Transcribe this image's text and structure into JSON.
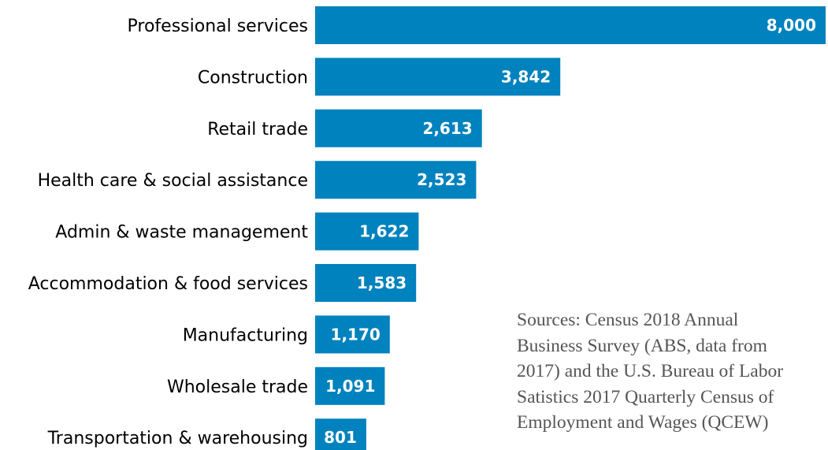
{
  "chart_data": {
    "type": "bar",
    "orientation": "horizontal",
    "categories": [
      "Professional services",
      "Construction",
      "Retail trade",
      "Health care & social assistance",
      "Admin & waste management",
      "Accommodation & food services",
      "Manufacturing",
      "Wholesale trade",
      "Transportation & warehousing"
    ],
    "values": [
      8000,
      3842,
      2613,
      2523,
      1622,
      1583,
      1170,
      1091,
      801
    ],
    "value_labels": [
      "8,000",
      "3,842",
      "2,613",
      "2,523",
      "1,622",
      "1,583",
      "1,170",
      "1,091",
      "801"
    ],
    "bar_color": "#0082BE",
    "label_color": "#000000",
    "value_label_color": "#FFFFFF",
    "xlim": [
      0,
      8000
    ],
    "grid": false,
    "legend": "none"
  },
  "note": {
    "lines": [
      "Sources: Census 2018 Annual",
      "Business Survey (ABS, data from",
      "2017) and the U.S. Bureau of Labor",
      "Satistics 2017 Quarterly Census of",
      "Employment and Wages (QCEW)"
    ],
    "color": "#555555"
  }
}
